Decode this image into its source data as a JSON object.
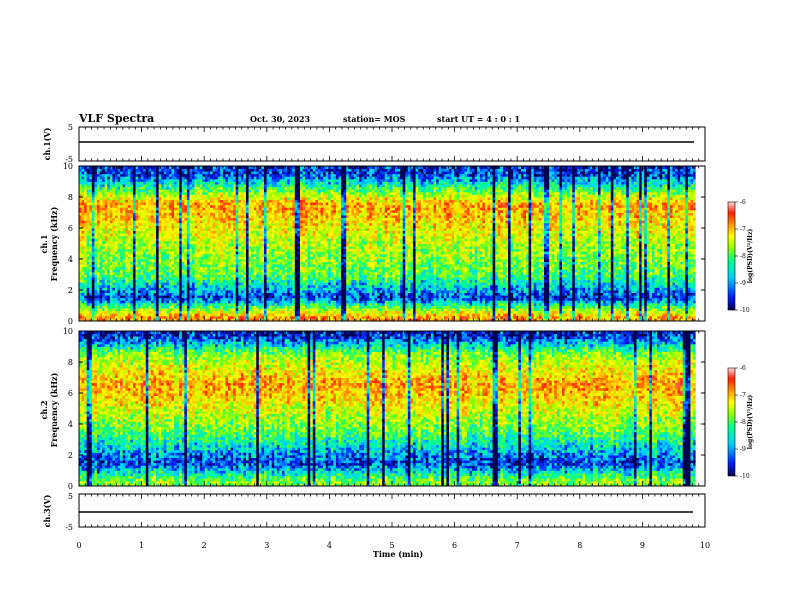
{
  "header": {
    "title": "VLF Spectra",
    "date": "Oct. 30, 2023",
    "station": "station= MOS",
    "start": "start  UT =   4 : 0  : 1"
  },
  "colors": {
    "waveform_line": "#000000",
    "colormap": [
      "#000050",
      "#0020ff",
      "#00d0ff",
      "#00ff90",
      "#90ff00",
      "#ffff00",
      "#ffa000",
      "#ff2000",
      "#ffd8d8"
    ]
  },
  "chart_data": [
    {
      "type": "line",
      "panel": "ch1-waveform",
      "ylabel": "ch.1(V)",
      "ylim": [
        -5,
        5
      ],
      "yticks": [
        "5",
        "-5"
      ],
      "xlim": [
        0,
        10
      ],
      "series": [
        {
          "values": [
            0.2,
            0.2,
            0.2,
            0.2,
            0.2,
            0.2,
            0.2,
            0.2,
            0.2,
            0.2,
            0.2
          ]
        }
      ]
    },
    {
      "type": "heatmap",
      "panel": "ch1-spectrogram",
      "ylabel": "ch.1\nFrequency (kHz)",
      "xlim": [
        0,
        9.85
      ],
      "ylim": [
        0,
        10
      ],
      "yticks": [
        "0",
        "2",
        "4",
        "6",
        "8",
        "10"
      ],
      "colorbar": {
        "label": "log(PSD)(V²/Hz)",
        "range": [
          -10,
          -6
        ],
        "ticks": [
          "-6",
          "-7",
          "-8",
          "-9",
          "-10"
        ]
      },
      "band_profile": [
        {
          "freq_khz": 0.3,
          "level": -7.0
        },
        {
          "freq_khz": 1.5,
          "level": -9.5
        },
        {
          "freq_khz": 3.0,
          "level": -8.2
        },
        {
          "freq_khz": 5.0,
          "level": -7.8
        },
        {
          "freq_khz": 7.5,
          "level": -7.0
        },
        {
          "freq_khz": 9.5,
          "level": -9.5
        }
      ]
    },
    {
      "type": "heatmap",
      "panel": "ch2-spectrogram",
      "ylabel": "ch.2\nFrequency (kHz)",
      "xlim": [
        0,
        9.85
      ],
      "ylim": [
        0,
        10
      ],
      "yticks": [
        "0",
        "2",
        "4",
        "6",
        "8",
        "10"
      ],
      "colorbar": {
        "label": "log(PSD)(V²/Hz)",
        "range": [
          -10,
          -6
        ],
        "ticks": [
          "-6",
          "-7",
          "-8",
          "-9",
          "-10"
        ]
      },
      "band_profile": [
        {
          "freq_khz": 0.3,
          "level": -8.0
        },
        {
          "freq_khz": 1.5,
          "level": -9.5
        },
        {
          "freq_khz": 3.5,
          "level": -8.2
        },
        {
          "freq_khz": 6.5,
          "level": -7.0
        },
        {
          "freq_khz": 8.5,
          "level": -8.0
        },
        {
          "freq_khz": 9.7,
          "level": -9.6
        }
      ]
    },
    {
      "type": "line",
      "panel": "ch3-waveform",
      "ylabel": "ch.3(V)",
      "ylim": [
        -5,
        5
      ],
      "yticks": [
        "5",
        "-5"
      ],
      "xlim": [
        0,
        10
      ],
      "series": [
        {
          "values": [
            0,
            0,
            0,
            0,
            0,
            0,
            0,
            0,
            0,
            0,
            0
          ]
        }
      ]
    }
  ],
  "time_axis": {
    "label": "Time  (min)",
    "ticks": [
      "0",
      "1",
      "2",
      "3",
      "4",
      "5",
      "6",
      "7",
      "8",
      "9",
      "10"
    ]
  }
}
